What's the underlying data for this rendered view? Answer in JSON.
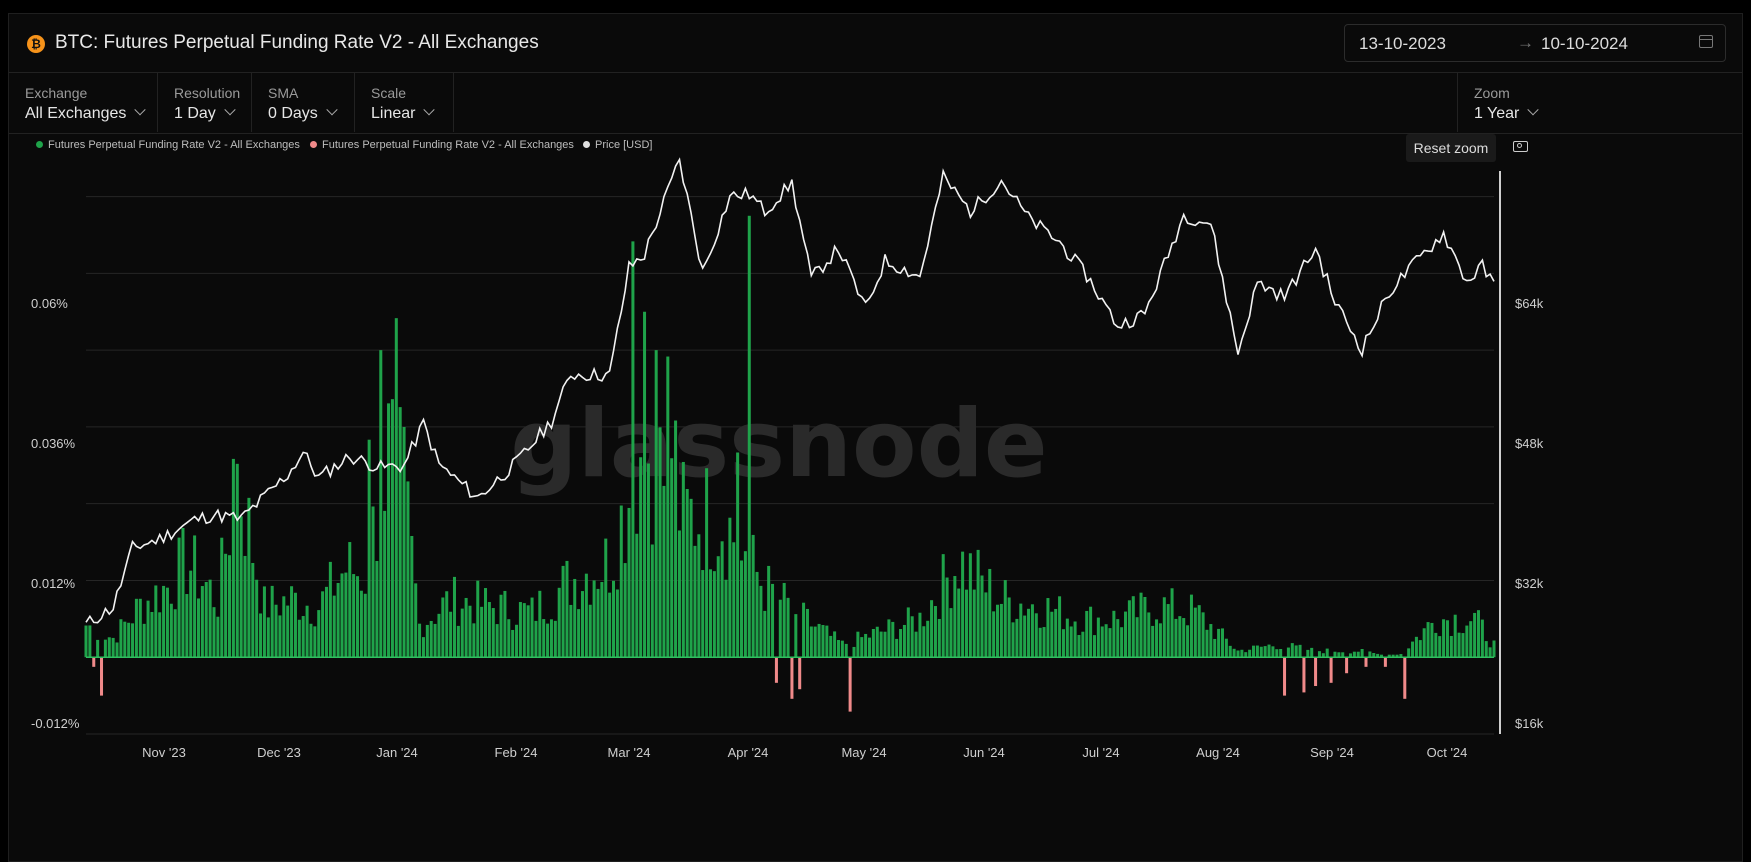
{
  "header": {
    "title": "BTC: Futures Perpetual Funding Rate V2 - All Exchanges",
    "date_start": "13-10-2023",
    "date_arrow": "→",
    "date_end": "10-10-2024"
  },
  "controls": {
    "exchange": {
      "label": "Exchange",
      "value": "All Exchanges"
    },
    "resolution": {
      "label": "Resolution",
      "value": "1 Day"
    },
    "sma": {
      "label": "SMA",
      "value": "0 Days"
    },
    "scale": {
      "label": "Scale",
      "value": "Linear"
    },
    "zoom": {
      "label": "Zoom",
      "value": "1 Year"
    }
  },
  "actions": {
    "reset_zoom": "Reset zoom"
  },
  "icons": {
    "asset": "bitcoin-icon",
    "calendar": "calendar-icon",
    "camera": "camera-icon"
  },
  "watermark": "glassnode",
  "colors": {
    "positive": "#1fa34a",
    "negative": "#f08a8a",
    "price": "#f2f2f2",
    "brand": "#f7931a"
  },
  "chart_data": {
    "type": "bar",
    "title": "BTC: Futures Perpetual Funding Rate V2 - All Exchanges",
    "legend": [
      {
        "name": "Futures Perpetual Funding Rate V2 - All Exchanges",
        "color": "#1fa34a"
      },
      {
        "name": "Futures Perpetual Funding Rate V2 - All Exchanges",
        "color": "#f08a8a"
      },
      {
        "name": "Price [USD]",
        "color": "#e0e0e0"
      }
    ],
    "legend_position": "top-left",
    "x_range": [
      "2023-10-13",
      "2024-10-10"
    ],
    "x_ticks": [
      "Nov '23",
      "Dec '23",
      "Jan '24",
      "Feb '24",
      "Mar '24",
      "Apr '24",
      "May '24",
      "Jun '24",
      "Jul '24",
      "Aug '24",
      "Sep '24",
      "Oct '24"
    ],
    "y_left": {
      "ticks": [
        "0.06%",
        "0.036%",
        "0.012%",
        "-0.012%"
      ],
      "range": [
        -0.012,
        0.076
      ],
      "unit": "%"
    },
    "y_right": {
      "ticks": [
        "$64k",
        "$48k",
        "$32k",
        "$16k"
      ],
      "range": [
        16000,
        72000
      ],
      "unit": "USD"
    },
    "funding_rate_series": {
      "name": "Futures Perpetual Funding Rate V2 - All Exchanges",
      "start_date": "2023-10-13",
      "keyframes": [
        {
          "date": "2023-10-13",
          "value": 0.005
        },
        {
          "date": "2023-10-20",
          "value": 0.003
        },
        {
          "date": "2023-10-27",
          "value": 0.008
        },
        {
          "date": "2023-11-03",
          "value": 0.011
        },
        {
          "date": "2023-11-08",
          "value": 0.015
        },
        {
          "date": "2023-11-16",
          "value": 0.009
        },
        {
          "date": "2023-11-21",
          "value": 0.029
        },
        {
          "date": "2023-11-28",
          "value": 0.008
        },
        {
          "date": "2023-12-05",
          "value": 0.009
        },
        {
          "date": "2023-12-12",
          "value": 0.008
        },
        {
          "date": "2023-12-19",
          "value": 0.014
        },
        {
          "date": "2023-12-24",
          "value": 0.013
        },
        {
          "date": "2023-12-30",
          "value": 0.032
        },
        {
          "date": "2024-01-03",
          "value": 0.026
        },
        {
          "date": "2024-01-07",
          "value": 0.005
        },
        {
          "date": "2024-01-15",
          "value": 0.009
        },
        {
          "date": "2024-01-25",
          "value": 0.008
        },
        {
          "date": "2024-02-05",
          "value": 0.007
        },
        {
          "date": "2024-02-15",
          "value": 0.012
        },
        {
          "date": "2024-02-25",
          "value": 0.015
        },
        {
          "date": "2024-03-05",
          "value": 0.034
        },
        {
          "date": "2024-03-15",
          "value": 0.022
        },
        {
          "date": "2024-03-25",
          "value": 0.022
        },
        {
          "date": "2024-04-05",
          "value": 0.011
        },
        {
          "date": "2024-04-15",
          "value": 0.006
        },
        {
          "date": "2024-04-25",
          "value": 0.002
        },
        {
          "date": "2024-05-05",
          "value": 0.004
        },
        {
          "date": "2024-05-15",
          "value": 0.006
        },
        {
          "date": "2024-05-25",
          "value": 0.015
        },
        {
          "date": "2024-06-05",
          "value": 0.009
        },
        {
          "date": "2024-06-15",
          "value": 0.008
        },
        {
          "date": "2024-06-25",
          "value": 0.006
        },
        {
          "date": "2024-07-05",
          "value": 0.006
        },
        {
          "date": "2024-07-15",
          "value": 0.008
        },
        {
          "date": "2024-07-25",
          "value": 0.007
        },
        {
          "date": "2024-08-05",
          "value": 0.001
        },
        {
          "date": "2024-08-15",
          "value": 0.002
        },
        {
          "date": "2024-08-25",
          "value": 0.001
        },
        {
          "date": "2024-09-05",
          "value": 0.001
        },
        {
          "date": "2024-09-15",
          "value": 0.0
        },
        {
          "date": "2024-09-25",
          "value": 0.006
        },
        {
          "date": "2024-10-05",
          "value": 0.006
        },
        {
          "date": "2024-10-10",
          "value": 0.002
        }
      ],
      "spikes": [
        {
          "date": "2023-11-20",
          "value": 0.031
        },
        {
          "date": "2023-12-25",
          "value": 0.034
        },
        {
          "date": "2023-12-28",
          "value": 0.048
        },
        {
          "date": "2024-01-01",
          "value": 0.053
        },
        {
          "date": "2024-03-02",
          "value": 0.065
        },
        {
          "date": "2024-03-05",
          "value": 0.054
        },
        {
          "date": "2024-03-08",
          "value": 0.048
        },
        {
          "date": "2024-03-11",
          "value": 0.047
        },
        {
          "date": "2024-03-13",
          "value": 0.037
        },
        {
          "date": "2024-03-29",
          "value": 0.032
        },
        {
          "date": "2024-04-01",
          "value": 0.069
        }
      ],
      "negatives": [
        {
          "date": "2023-10-15",
          "value": -0.0015
        },
        {
          "date": "2023-10-17",
          "value": -0.006
        },
        {
          "date": "2024-04-08",
          "value": -0.004
        },
        {
          "date": "2024-04-12",
          "value": -0.0065
        },
        {
          "date": "2024-04-14",
          "value": -0.005
        },
        {
          "date": "2024-04-27",
          "value": -0.0085
        },
        {
          "date": "2024-08-17",
          "value": -0.006
        },
        {
          "date": "2024-08-22",
          "value": -0.0055
        },
        {
          "date": "2024-08-25",
          "value": -0.0045
        },
        {
          "date": "2024-08-29",
          "value": -0.004
        },
        {
          "date": "2024-09-02",
          "value": -0.0025
        },
        {
          "date": "2024-09-07",
          "value": -0.0015
        },
        {
          "date": "2024-09-12",
          "value": -0.0015
        },
        {
          "date": "2024-09-17",
          "value": -0.0065
        }
      ]
    },
    "price_series": {
      "name": "Price [USD]",
      "points": [
        {
          "date": "2023-10-13",
          "value": 26900
        },
        {
          "date": "2023-10-20",
          "value": 28600
        },
        {
          "date": "2023-10-25",
          "value": 34500
        },
        {
          "date": "2023-11-01",
          "value": 35400
        },
        {
          "date": "2023-11-10",
          "value": 37300
        },
        {
          "date": "2023-11-15",
          "value": 37800
        },
        {
          "date": "2023-11-22",
          "value": 37400
        },
        {
          "date": "2023-12-04",
          "value": 41800
        },
        {
          "date": "2023-12-08",
          "value": 44000
        },
        {
          "date": "2023-12-12",
          "value": 41500
        },
        {
          "date": "2023-12-20",
          "value": 43600
        },
        {
          "date": "2023-12-28",
          "value": 42500
        },
        {
          "date": "2024-01-03",
          "value": 42700
        },
        {
          "date": "2024-01-08",
          "value": 46900
        },
        {
          "date": "2024-01-12",
          "value": 42800
        },
        {
          "date": "2024-01-22",
          "value": 39500
        },
        {
          "date": "2024-02-01",
          "value": 43000
        },
        {
          "date": "2024-02-10",
          "value": 47100
        },
        {
          "date": "2024-02-15",
          "value": 51800
        },
        {
          "date": "2024-02-25",
          "value": 51700
        },
        {
          "date": "2024-03-01",
          "value": 62400
        },
        {
          "date": "2024-03-05",
          "value": 63700
        },
        {
          "date": "2024-03-14",
          "value": 73100
        },
        {
          "date": "2024-03-20",
          "value": 62000
        },
        {
          "date": "2024-03-27",
          "value": 69500
        },
        {
          "date": "2024-04-01",
          "value": 69700
        },
        {
          "date": "2024-04-05",
          "value": 68000
        },
        {
          "date": "2024-04-12",
          "value": 70800
        },
        {
          "date": "2024-04-17",
          "value": 61300
        },
        {
          "date": "2024-04-24",
          "value": 64300
        },
        {
          "date": "2024-05-01",
          "value": 58300
        },
        {
          "date": "2024-05-06",
          "value": 63100
        },
        {
          "date": "2024-05-15",
          "value": 61500
        },
        {
          "date": "2024-05-21",
          "value": 71400
        },
        {
          "date": "2024-05-28",
          "value": 68000
        },
        {
          "date": "2024-06-05",
          "value": 71100
        },
        {
          "date": "2024-06-12",
          "value": 67300
        },
        {
          "date": "2024-06-20",
          "value": 64900
        },
        {
          "date": "2024-06-27",
          "value": 61600
        },
        {
          "date": "2024-07-05",
          "value": 56600
        },
        {
          "date": "2024-07-12",
          "value": 57800
        },
        {
          "date": "2024-07-22",
          "value": 67600
        },
        {
          "date": "2024-07-29",
          "value": 66800
        },
        {
          "date": "2024-08-05",
          "value": 53900
        },
        {
          "date": "2024-08-10",
          "value": 60900
        },
        {
          "date": "2024-08-17",
          "value": 59500
        },
        {
          "date": "2024-08-25",
          "value": 64300
        },
        {
          "date": "2024-08-30",
          "value": 59000
        },
        {
          "date": "2024-09-06",
          "value": 54300
        },
        {
          "date": "2024-09-13",
          "value": 60000
        },
        {
          "date": "2024-09-20",
          "value": 63000
        },
        {
          "date": "2024-09-27",
          "value": 65800
        },
        {
          "date": "2024-10-03",
          "value": 61000
        },
        {
          "date": "2024-10-07",
          "value": 62500
        },
        {
          "date": "2024-10-10",
          "value": 60600
        }
      ]
    },
    "grid": true
  }
}
